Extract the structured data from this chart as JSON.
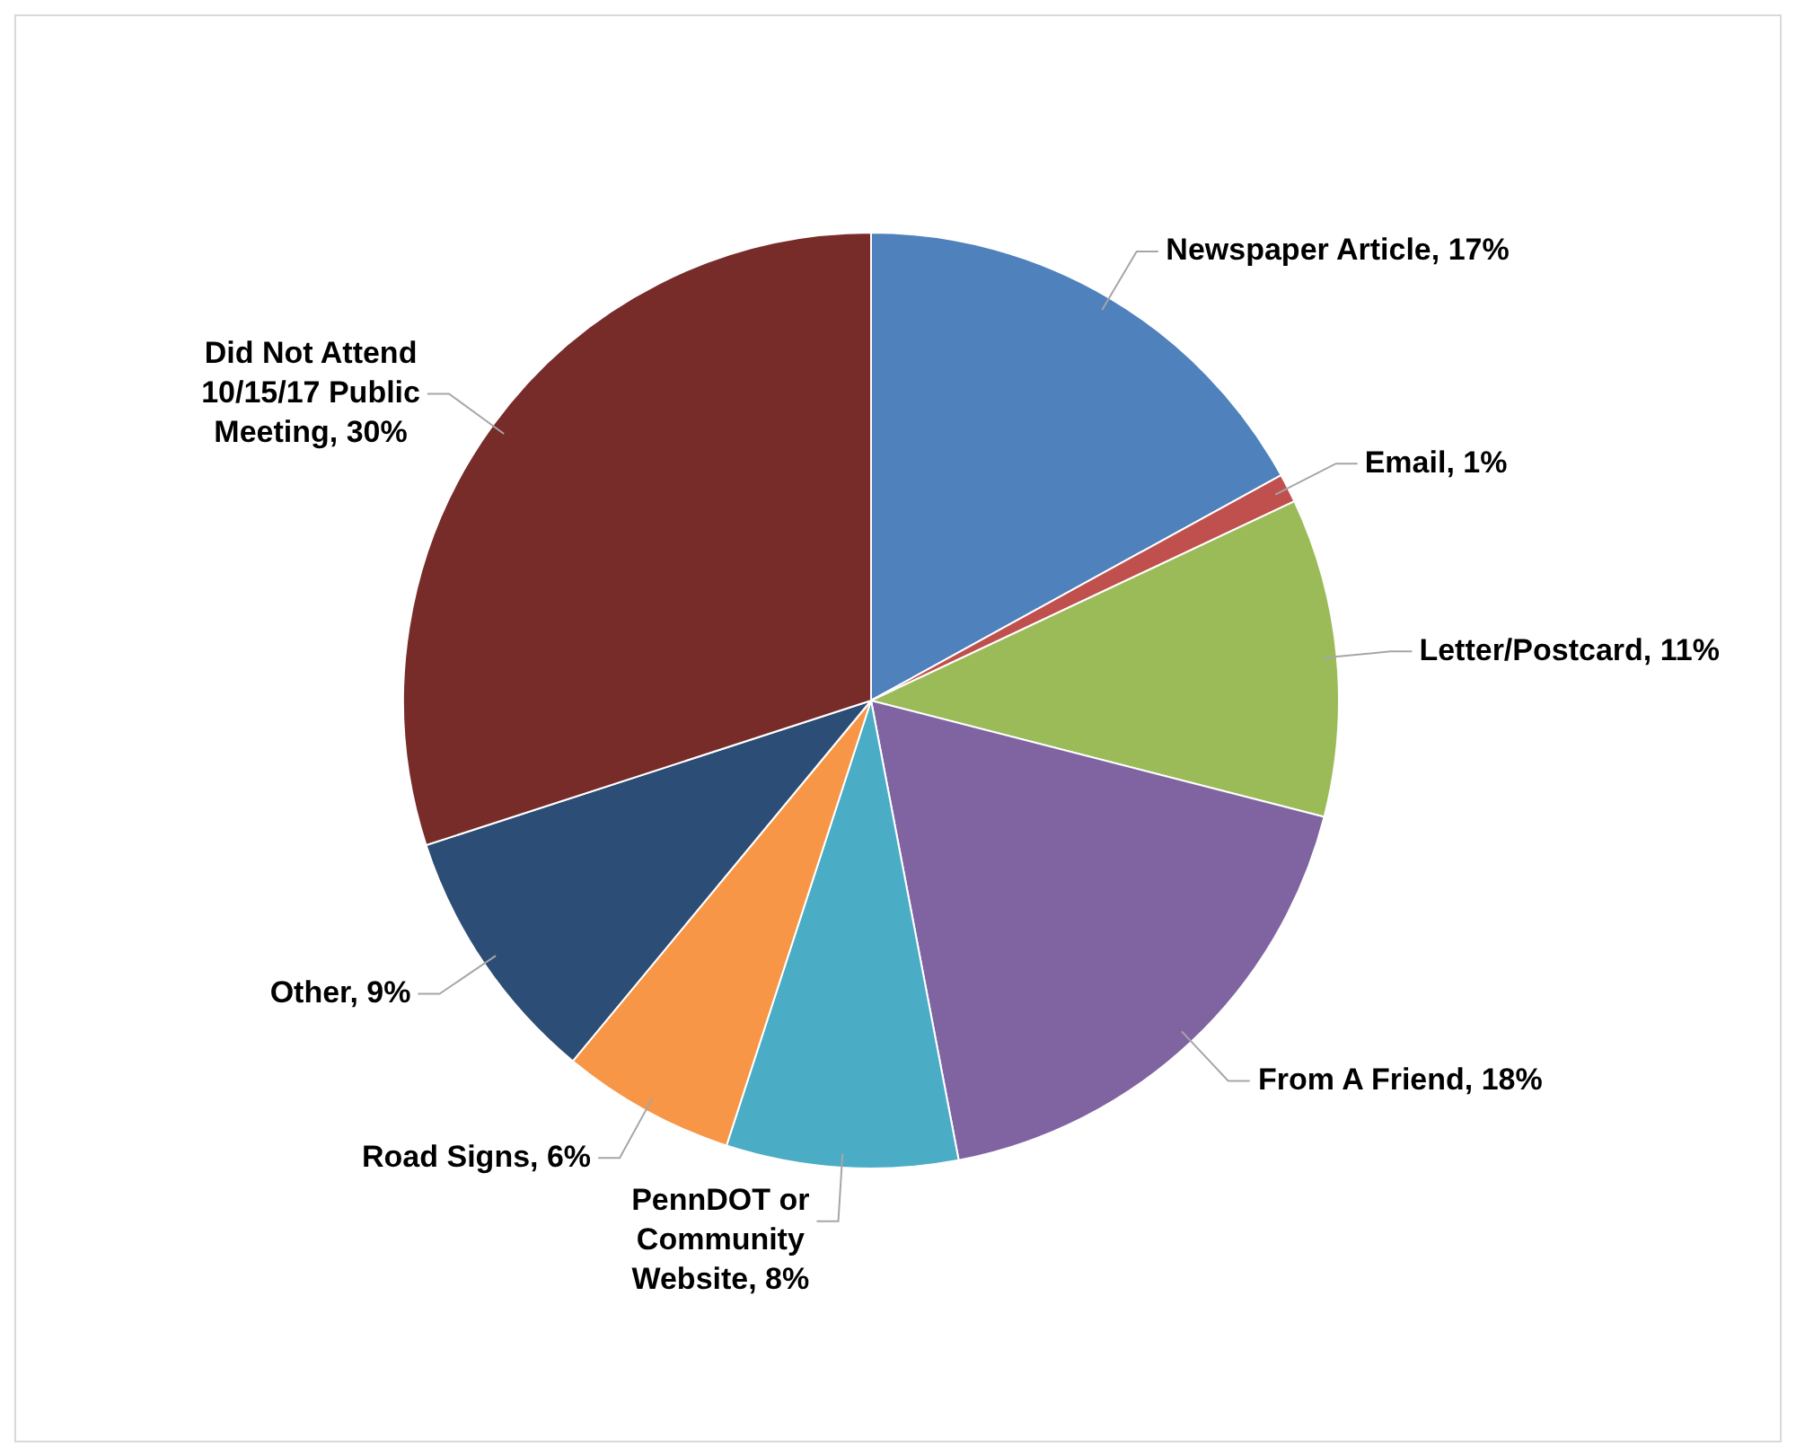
{
  "chart_data": {
    "type": "pie",
    "categories": [
      "Newspaper Article",
      "Email",
      "Letter/Postcard",
      "From A Friend",
      "PennDOT or Community Website",
      "Road Signs",
      "Other",
      "Did Not Attend 10/15/17 Public Meeting"
    ],
    "values": [
      17,
      1,
      11,
      18,
      8,
      6,
      9,
      30
    ],
    "value_labels": [
      "17%",
      "1%",
      "11%",
      "18%",
      "8%",
      "6%",
      "9%",
      "30%"
    ],
    "colors": [
      "#4f81bd",
      "#c0504d",
      "#9bbb59",
      "#8064a2",
      "#4bacc6",
      "#f79646",
      "#2c4d75",
      "#772c2a"
    ]
  }
}
